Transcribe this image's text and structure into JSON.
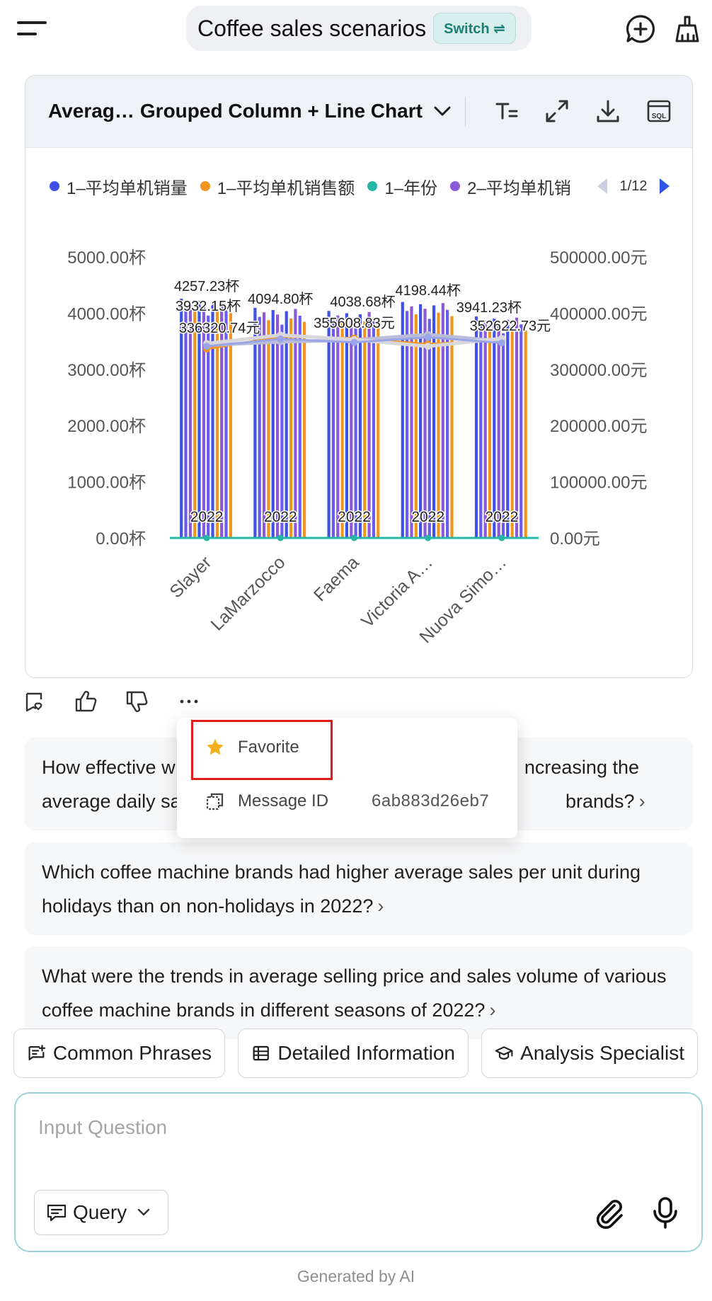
{
  "header": {
    "title": "Coffee sales scenarios",
    "switch_label": "Switch ⇌"
  },
  "chart_card": {
    "title_short": "Averag…",
    "chart_type_label": "Grouped Column + Line Chart",
    "legend": [
      {
        "label": "1–平均单机销量",
        "color": "#3f51e6"
      },
      {
        "label": "1–平均单机销售额",
        "color": "#f2951f"
      },
      {
        "label": "1–年份",
        "color": "#25b7a6"
      },
      {
        "label": "2–平均单机销",
        "color": "#8a5ad9"
      }
    ],
    "legend_page": "1/12"
  },
  "chart_data": {
    "type": "bar",
    "combo": "grouped column + line",
    "categories": [
      "Slayer",
      "LaMarzocco",
      "Faema",
      "Victoria A…",
      "Nuova Simo…"
    ],
    "y_left": {
      "ticks": [
        "5000.00杯",
        "4000.00杯",
        "3000.00杯",
        "2000.00杯",
        "1000.00杯",
        "0.00杯"
      ],
      "range": [
        0,
        5000
      ]
    },
    "y_right": {
      "ticks": [
        "500000.00元",
        "400000.00元",
        "300000.00元",
        "200000.00元",
        "100000.00元",
        "0.00元"
      ],
      "range": [
        0,
        500000
      ]
    },
    "series": [
      {
        "name": "1–平均单机销量",
        "kind": "bar",
        "axis": "left",
        "values": [
          4257.23,
          4094.8,
          4038.68,
          4198.44,
          3941.23
        ]
      },
      {
        "name": "1–平均单机销售额",
        "kind": "line",
        "axis": "right",
        "values": [
          336320.74,
          358000,
          355608.83,
          345000,
          352622.73
        ]
      },
      {
        "name": "1–年份",
        "kind": "line",
        "axis": "left",
        "values": [
          2022,
          2022,
          2022,
          2022,
          2022
        ]
      }
    ],
    "annotations": [
      {
        "category": "Slayer",
        "labels": [
          "4257.23杯",
          "3932.15杯",
          "336320.74元"
        ]
      },
      {
        "category": "LaMarzocco",
        "labels": [
          "4094.80杯"
        ]
      },
      {
        "category": "Faema",
        "labels": [
          "4038.68杯",
          "355608.83元"
        ]
      },
      {
        "category": "Victoria A…",
        "labels": [
          "4198.44杯"
        ]
      },
      {
        "category": "Nuova Simo…",
        "labels": [
          "3941.23杯",
          "352622.73元"
        ]
      }
    ],
    "year_label": "2022"
  },
  "menu": {
    "favorite_label": "Favorite",
    "message_id_label": "Message ID",
    "message_id_value": "6ab883d26eb7"
  },
  "suggestions": {
    "q1_start": "How effective w",
    "q1_end": "ncreasing the",
    "q1_line2_start": "average daily sa",
    "q1_line2_end": "brands?",
    "q2": "Which coffee machine brands had higher average sales per unit during holidays than on non-holidays in 2022?",
    "q3": "What were the trends in average selling price and sales volume of various coffee machine brands in different seasons of 2022?"
  },
  "chips": {
    "common": "Common Phrases",
    "detailed": "Detailed Information",
    "specialist": "Analysis Specialist"
  },
  "input": {
    "placeholder": "Input Question",
    "mode": "Query"
  },
  "footer": "Generated by AI"
}
